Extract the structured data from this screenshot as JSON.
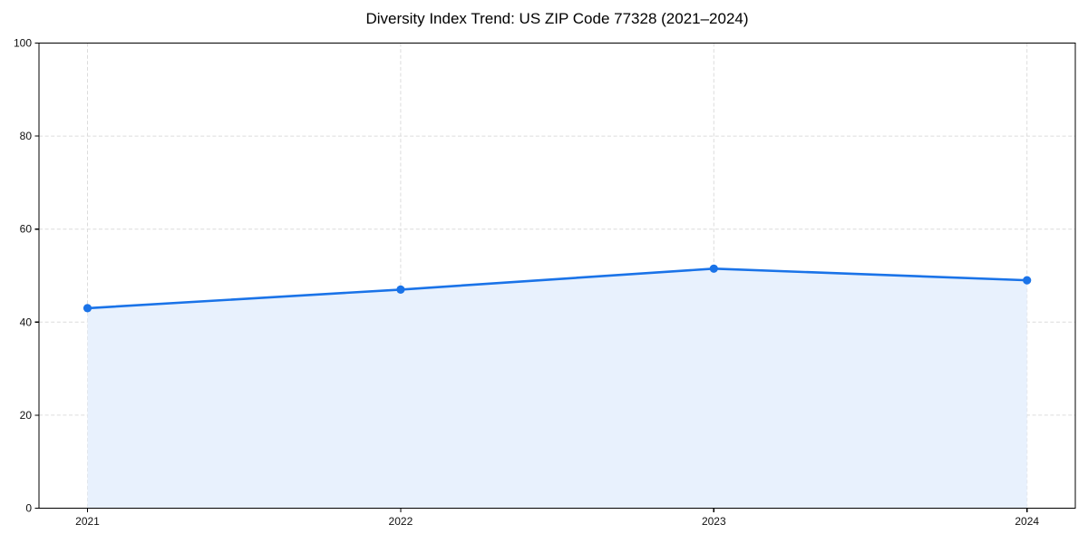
{
  "chart_data": {
    "type": "area",
    "title": "Diversity Index Trend: US ZIP Code 77328 (2021–2024)",
    "x": [
      "2021",
      "2022",
      "2023",
      "2024"
    ],
    "values": [
      43,
      47,
      51.5,
      49
    ],
    "xlabel": "",
    "ylabel": "",
    "ylim": [
      0,
      100
    ],
    "yticks": [
      0,
      20,
      40,
      60,
      80,
      100
    ],
    "grid": true,
    "grid_style": "dashed",
    "legend": "none",
    "marker": "circle",
    "colors": {
      "line": "#1a73e8",
      "marker": "#1a73e8",
      "area_fill": "#e8f1fd",
      "grid": "#dcdcdc",
      "spine": "#000000",
      "tick_label": "#111111",
      "title": "#000000",
      "background": "#ffffff"
    }
  }
}
